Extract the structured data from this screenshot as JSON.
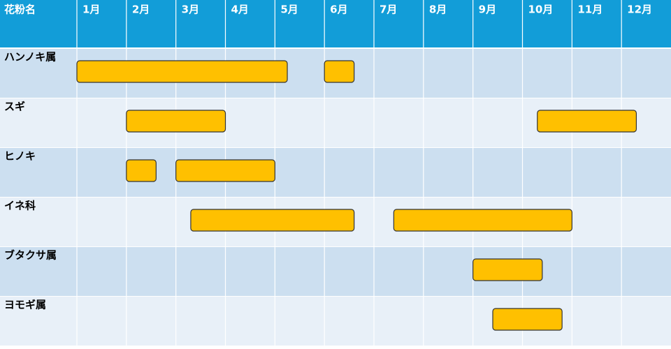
{
  "chart_data": {
    "type": "gantt",
    "header": "花粉名",
    "categories": [
      "1月",
      "2月",
      "3月",
      "4月",
      "5月",
      "6月",
      "7月",
      "8月",
      "9月",
      "10月",
      "11月",
      "12月"
    ],
    "xlim": [
      0,
      12
    ],
    "color": "#ffc000",
    "series": [
      {
        "name": "ハンノキ属",
        "spans": [
          [
            0,
            4.25
          ],
          [
            5.0,
            5.6
          ]
        ]
      },
      {
        "name": "スギ",
        "spans": [
          [
            1.0,
            3.0
          ],
          [
            9.3,
            11.3
          ]
        ]
      },
      {
        "name": "ヒノキ",
        "spans": [
          [
            1.0,
            1.6
          ],
          [
            2.0,
            4.0
          ]
        ]
      },
      {
        "name": "イネ科",
        "spans": [
          [
            2.3,
            5.6
          ],
          [
            6.4,
            10.0
          ]
        ]
      },
      {
        "name": "ブタクサ属",
        "spans": [
          [
            8.0,
            9.4
          ]
        ]
      },
      {
        "name": "ヨモギ属",
        "spans": [
          [
            8.4,
            9.8
          ]
        ]
      }
    ]
  }
}
